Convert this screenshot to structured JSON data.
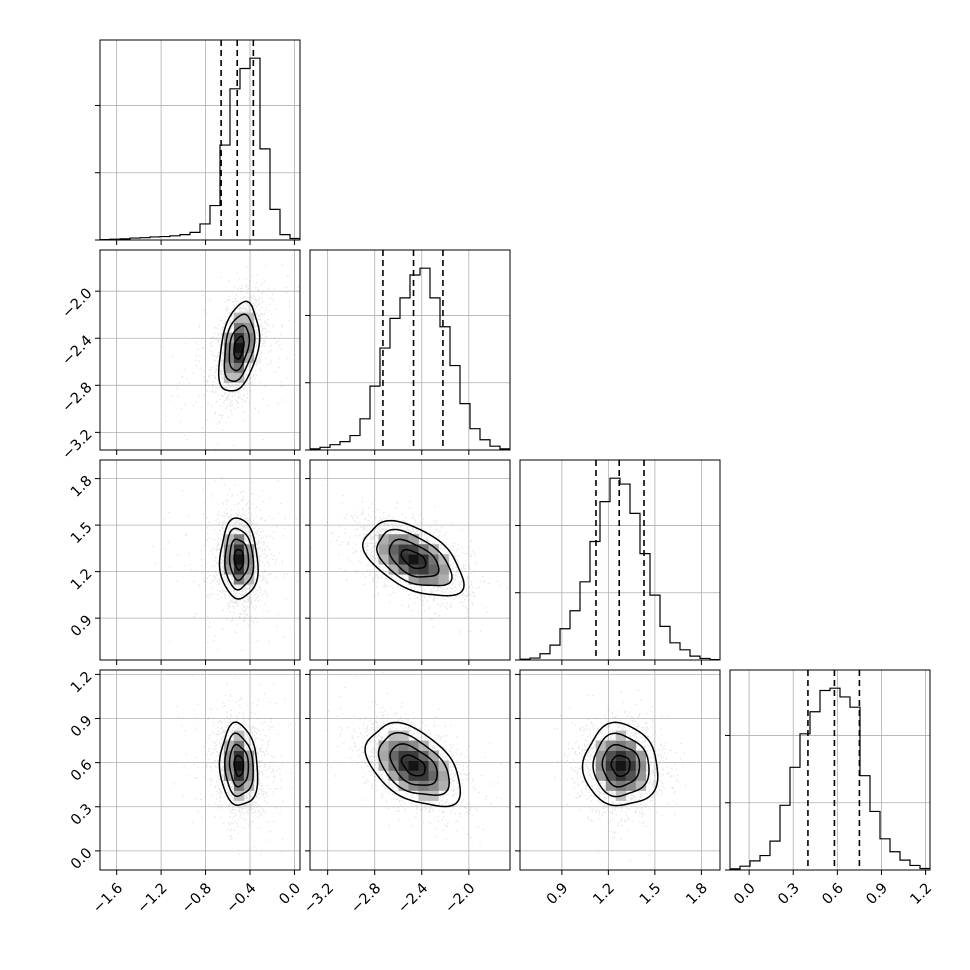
{
  "chart_data": {
    "type": "corner",
    "parameters": [
      "",
      "",
      "",
      ""
    ],
    "n_dim": 4,
    "grid": true,
    "quantiles": [
      0.16,
      0.5,
      0.84
    ],
    "axes": [
      {
        "lim": [
          -1.75,
          0.05
        ],
        "ticks": [
          "−1.6",
          "−1.2",
          "−0.8",
          "−0.4",
          "0.0"
        ],
        "tick_values": [
          -1.6,
          -1.2,
          -0.8,
          -0.4,
          0.0
        ]
      },
      {
        "lim": [
          -3.35,
          -1.65
        ],
        "ticks": [
          "−3.2",
          "−2.8",
          "−2.4",
          "−2.0"
        ],
        "tick_values": [
          -3.2,
          -2.8,
          -2.4,
          -2.0
        ]
      },
      {
        "lim": [
          0.63,
          1.92
        ],
        "ticks": [
          "0.9",
          "1.2",
          "1.5",
          "1.8"
        ],
        "tick_values": [
          0.9,
          1.2,
          1.5,
          1.8
        ]
      },
      {
        "lim": [
          -0.13,
          1.23
        ],
        "ticks": [
          "0.0",
          "0.3",
          "0.6",
          "0.9",
          "1.2"
        ],
        "tick_values": [
          0.0,
          0.3,
          0.6,
          0.9,
          1.2
        ]
      }
    ],
    "marginals": [
      {
        "param_index": 0,
        "quantile_values": [
          -0.66,
          -0.515,
          -0.37
        ],
        "bin_edges": [
          -1.75,
          -1.66,
          -1.57,
          -1.48,
          -1.39,
          -1.3,
          -1.21,
          -1.12,
          -1.03,
          -0.94,
          -0.85,
          -0.76,
          -0.67,
          -0.58,
          -0.49,
          -0.4,
          -0.31,
          -0.22,
          -0.13,
          -0.04,
          0.05
        ],
        "counts": [
          1,
          2,
          3,
          5,
          6,
          8,
          9,
          11,
          14,
          20,
          42,
          90,
          248,
          395,
          448,
          475,
          238,
          80,
          14,
          4
        ]
      },
      {
        "param_index": 1,
        "quantile_values": [
          -2.73,
          -2.47,
          -2.22
        ],
        "bin_edges": [
          -3.35,
          -3.265,
          -3.18,
          -3.095,
          -3.01,
          -2.925,
          -2.84,
          -2.755,
          -2.67,
          -2.585,
          -2.5,
          -2.415,
          -2.33,
          -2.245,
          -2.16,
          -2.075,
          -1.99,
          -1.905,
          -1.82,
          -1.735,
          -1.65
        ],
        "counts": [
          3,
          7,
          14,
          22,
          38,
          82,
          168,
          268,
          346,
          400,
          460,
          478,
          400,
          324,
          222,
          122,
          56,
          27,
          10,
          3
        ]
      },
      {
        "param_index": 2,
        "quantile_values": [
          1.12,
          1.27,
          1.43
        ],
        "bin_edges": [
          0.63,
          0.6945,
          0.759,
          0.8235,
          0.888,
          0.9525,
          1.017,
          1.0815,
          1.146,
          1.2105,
          1.275,
          1.3395,
          1.404,
          1.4685,
          1.533,
          1.5975,
          1.662,
          1.7265,
          1.791,
          1.8555,
          1.92
        ],
        "counts": [
          2,
          5,
          16,
          38,
          80,
          126,
          200,
          303,
          405,
          465,
          450,
          375,
          272,
          166,
          86,
          44,
          26,
          10,
          4,
          1
        ]
      },
      {
        "param_index": 3,
        "quantile_values": [
          0.4,
          0.58,
          0.75
        ],
        "bin_edges": [
          -0.13,
          -0.062,
          0.006,
          0.074,
          0.142,
          0.21,
          0.278,
          0.346,
          0.414,
          0.482,
          0.55,
          0.618,
          0.686,
          0.754,
          0.822,
          0.89,
          0.958,
          1.026,
          1.094,
          1.162,
          1.23
        ],
        "counts": [
          3,
          10,
          24,
          38,
          76,
          170,
          270,
          358,
          416,
          472,
          478,
          455,
          428,
          248,
          154,
          82,
          48,
          26,
          12,
          4
        ]
      }
    ],
    "joint": [
      {
        "x_param": 0,
        "y_param": 1,
        "center": [
          -0.5,
          -2.48
        ],
        "sigma": [
          0.09,
          0.19
        ],
        "rho": 0.35,
        "scatter_halo": true
      },
      {
        "x_param": 0,
        "y_param": 2,
        "center": [
          -0.5,
          1.28
        ],
        "sigma": [
          0.085,
          0.13
        ],
        "rho": -0.05,
        "scatter_halo": true
      },
      {
        "x_param": 1,
        "y_param": 2,
        "center": [
          -2.47,
          1.28
        ],
        "sigma": [
          0.21,
          0.12
        ],
        "rho": -0.5,
        "scatter_halo": false
      },
      {
        "x_param": 0,
        "y_param": 3,
        "center": [
          -0.5,
          0.58
        ],
        "sigma": [
          0.085,
          0.14
        ],
        "rho": -0.1,
        "scatter_halo": true
      },
      {
        "x_param": 1,
        "y_param": 3,
        "center": [
          -2.47,
          0.58
        ],
        "sigma": [
          0.2,
          0.14
        ],
        "rho": -0.45,
        "scatter_halo": false
      },
      {
        "x_param": 2,
        "y_param": 3,
        "center": [
          1.28,
          0.58
        ],
        "sigma": [
          0.12,
          0.14
        ],
        "rho": -0.05,
        "scatter_halo": false
      }
    ],
    "contour_levels_sigma": [
      0.5,
      1.0,
      1.5,
      2.0
    ],
    "colors": {
      "line": "#000000",
      "grid": "#b0b0b0",
      "scatter": "#8c8c8c",
      "frame": "#000000"
    }
  }
}
